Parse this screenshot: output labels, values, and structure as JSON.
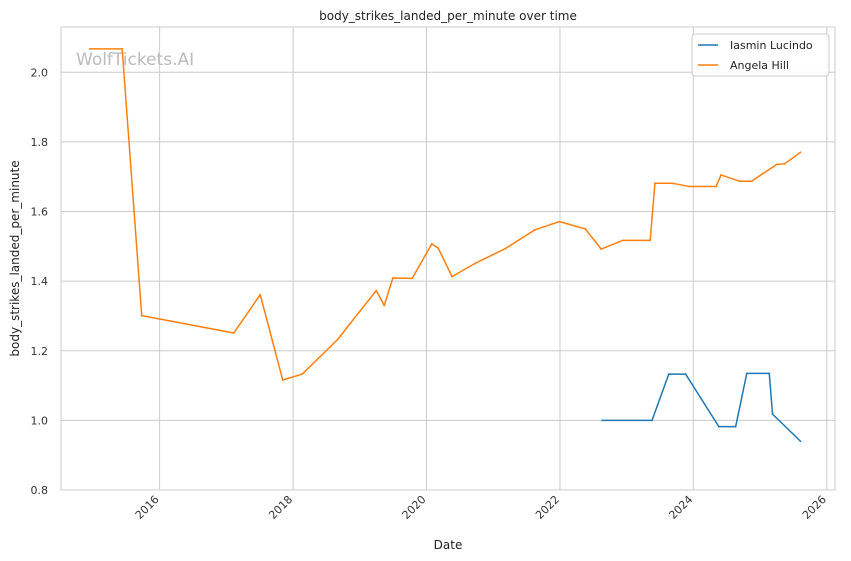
{
  "chart_data": {
    "type": "line",
    "title": "body_strikes_landed_per_minute over time",
    "xlabel": "Date",
    "ylabel": "body_strikes_landed_per_minute",
    "watermark": "WolfTickets.AI",
    "xlim": [
      "2014-07-10",
      "2026-02-15"
    ],
    "ylim": [
      0.8,
      2.13
    ],
    "x_ticks": [
      "2016",
      "2018",
      "2020",
      "2022",
      "2024",
      "2026"
    ],
    "y_ticks": [
      "0.8",
      "1.0",
      "1.2",
      "1.4",
      "1.6",
      "1.8",
      "2.0"
    ],
    "grid": true,
    "legend_position": "top-right",
    "series": [
      {
        "name": "Iasmin Lucindo",
        "color": "#1f77b4",
        "points": [
          [
            "2022-08-20",
            1.0
          ],
          [
            "2023-05-20",
            1.0
          ],
          [
            "2023-08-20",
            1.133
          ],
          [
            "2023-11-20",
            1.133
          ],
          [
            "2024-05-20",
            0.982
          ],
          [
            "2024-08-20",
            0.982
          ],
          [
            "2024-10-20",
            1.135
          ],
          [
            "2025-02-20",
            1.135
          ],
          [
            "2025-03-10",
            1.018
          ],
          [
            "2025-08-10",
            0.94
          ]
        ]
      },
      {
        "name": "Angela Hill",
        "color": "#ff7f0e",
        "points": [
          [
            "2014-12-15",
            2.067
          ],
          [
            "2015-06-10",
            2.067
          ],
          [
            "2015-09-25",
            1.301
          ],
          [
            "2017-02-10",
            1.251
          ],
          [
            "2017-07-05",
            1.361
          ],
          [
            "2017-11-05",
            1.116
          ],
          [
            "2018-02-20",
            1.133
          ],
          [
            "2018-09-01",
            1.232
          ],
          [
            "2019-04-01",
            1.373
          ],
          [
            "2019-05-15",
            1.33
          ],
          [
            "2019-07-01",
            1.409
          ],
          [
            "2019-10-15",
            1.408
          ],
          [
            "2020-01-30",
            1.507
          ],
          [
            "2020-03-05",
            1.495
          ],
          [
            "2020-05-20",
            1.413
          ],
          [
            "2020-09-20",
            1.45
          ],
          [
            "2021-03-10",
            1.494
          ],
          [
            "2021-08-15",
            1.547
          ],
          [
            "2021-12-30",
            1.571
          ],
          [
            "2022-05-20",
            1.55
          ],
          [
            "2022-08-15",
            1.492
          ],
          [
            "2022-12-10",
            1.517
          ],
          [
            "2023-05-10",
            1.517
          ],
          [
            "2023-06-05",
            1.681
          ],
          [
            "2023-09-10",
            1.681
          ],
          [
            "2023-12-10",
            1.672
          ],
          [
            "2024-05-05",
            1.672
          ],
          [
            "2024-06-01",
            1.705
          ],
          [
            "2024-09-10",
            1.687
          ],
          [
            "2024-11-15",
            1.687
          ],
          [
            "2025-04-01",
            1.735
          ],
          [
            "2025-05-15",
            1.737
          ],
          [
            "2025-08-10",
            1.77
          ]
        ]
      }
    ]
  }
}
